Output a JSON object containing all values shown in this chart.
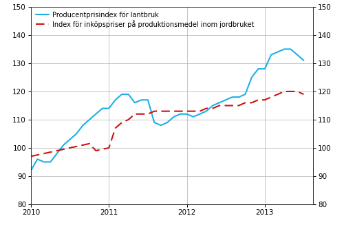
{
  "blue_label": "Producentprisindex för lantbruk",
  "red_label": "Index för inköpspriser på produktionsmedel inom jordbruket",
  "blue_color": "#1DB0E6",
  "red_color": "#CC1111",
  "ylim": [
    80,
    150
  ],
  "yticks": [
    80,
    90,
    100,
    110,
    120,
    130,
    140,
    150
  ],
  "xlim_start": 2010.0,
  "xlim_end": 2013.62,
  "xtick_positions": [
    2010.0,
    2011.0,
    2012.0,
    2013.0
  ],
  "xtick_labels": [
    "2010",
    "2011",
    "2012",
    "2013"
  ],
  "blue_x": [
    2010.0,
    2010.083,
    2010.167,
    2010.25,
    2010.333,
    2010.417,
    2010.5,
    2010.583,
    2010.667,
    2010.75,
    2010.833,
    2010.917,
    2011.0,
    2011.083,
    2011.167,
    2011.25,
    2011.333,
    2011.417,
    2011.5,
    2011.583,
    2011.667,
    2011.75,
    2011.833,
    2011.917,
    2012.0,
    2012.083,
    2012.167,
    2012.25,
    2012.333,
    2012.417,
    2012.5,
    2012.583,
    2012.667,
    2012.75,
    2012.833,
    2012.917,
    2013.0,
    2013.083,
    2013.167,
    2013.25,
    2013.333,
    2013.417,
    2013.5
  ],
  "blue_y": [
    92,
    96,
    95,
    95,
    98,
    101,
    103,
    105,
    108,
    110,
    112,
    114,
    114,
    117,
    119,
    119,
    116,
    117,
    117,
    109,
    108,
    109,
    111,
    112,
    112,
    111,
    112,
    113,
    115,
    116,
    117,
    118,
    118,
    119,
    125,
    128,
    128,
    133,
    134,
    135,
    135,
    133,
    131
  ],
  "red_x": [
    2010.0,
    2010.083,
    2010.167,
    2010.25,
    2010.333,
    2010.417,
    2010.5,
    2010.583,
    2010.667,
    2010.75,
    2010.833,
    2010.917,
    2011.0,
    2011.083,
    2011.167,
    2011.25,
    2011.333,
    2011.417,
    2011.5,
    2011.583,
    2011.667,
    2011.75,
    2011.833,
    2011.917,
    2012.0,
    2012.083,
    2012.167,
    2012.25,
    2012.333,
    2012.417,
    2012.5,
    2012.583,
    2012.667,
    2012.75,
    2012.833,
    2012.917,
    2013.0,
    2013.083,
    2013.167,
    2013.25,
    2013.333,
    2013.417,
    2013.5
  ],
  "red_y": [
    97,
    97.5,
    98,
    98.5,
    99,
    99.5,
    100,
    100.5,
    101,
    101.5,
    99,
    99.5,
    100,
    107,
    109,
    110,
    112,
    112,
    112,
    113,
    113,
    113,
    113,
    113,
    113,
    113,
    113,
    114,
    114,
    115,
    115,
    115,
    115,
    116,
    116,
    117,
    117,
    118,
    119,
    120,
    120,
    120,
    119
  ],
  "grid_color": "#BBBBBB",
  "background_color": "#FFFFFF",
  "spine_color": "#333333",
  "legend_fontsize": 7.0,
  "tick_fontsize": 7.5,
  "line_width": 1.5
}
